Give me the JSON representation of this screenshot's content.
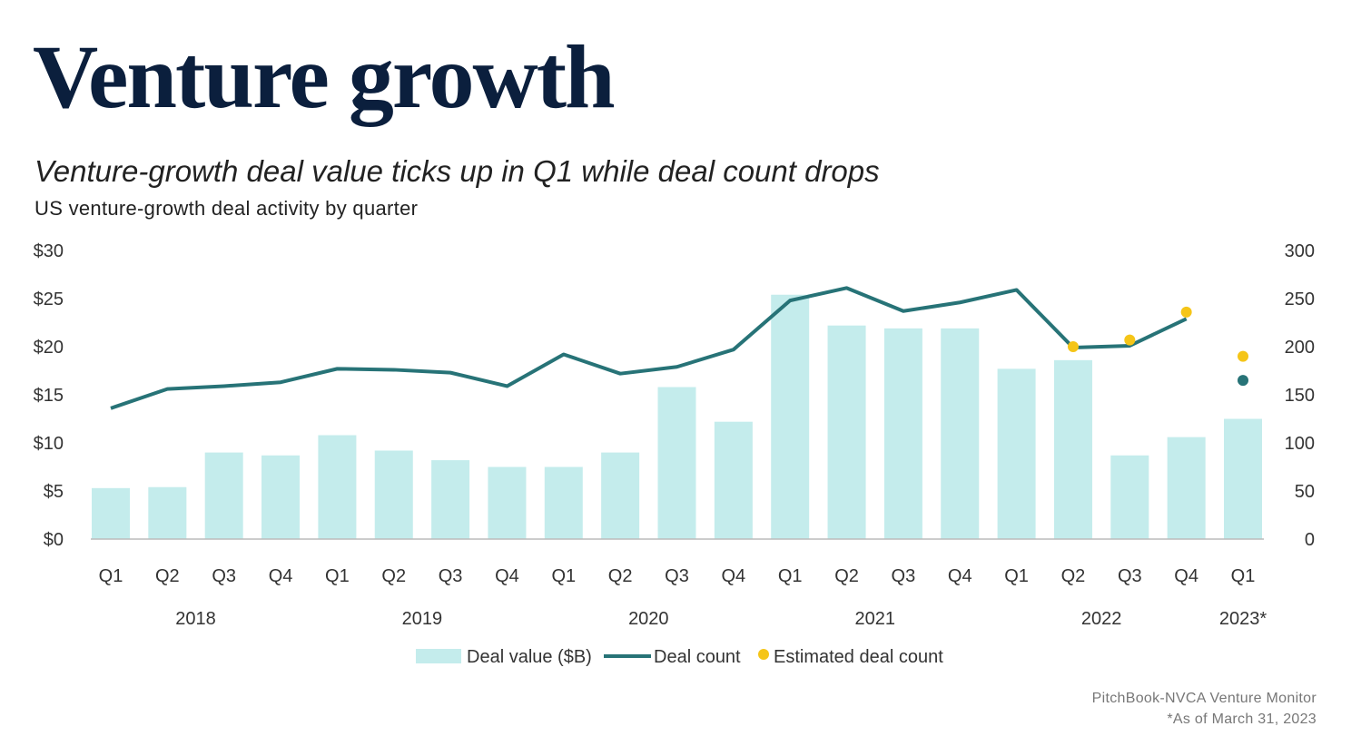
{
  "title": "Venture growth",
  "subtitle": "Venture-growth deal value ticks up in Q1 while deal count drops",
  "caption": "US venture-growth deal activity by quarter",
  "source": "PitchBook-NVCA Venture Monitor",
  "footnote": "*As of March 31, 2023",
  "colors": {
    "bar": "#c4ecec",
    "line": "#277377",
    "estimated": "#f5c518",
    "title": "#0b1f3d"
  },
  "chart_data": {
    "type": "bar+line",
    "categories": [
      "Q1",
      "Q2",
      "Q3",
      "Q4",
      "Q1",
      "Q2",
      "Q3",
      "Q4",
      "Q1",
      "Q2",
      "Q3",
      "Q4",
      "Q1",
      "Q2",
      "Q3",
      "Q4",
      "Q1",
      "Q2",
      "Q3",
      "Q4",
      "Q1"
    ],
    "years": [
      {
        "label": "2018",
        "quarters": [
          0,
          3
        ]
      },
      {
        "label": "2019",
        "quarters": [
          4,
          7
        ]
      },
      {
        "label": "2020",
        "quarters": [
          8,
          11
        ]
      },
      {
        "label": "2021",
        "quarters": [
          12,
          15
        ]
      },
      {
        "label": "2022",
        "quarters": [
          16,
          19
        ]
      },
      {
        "label": "2023*",
        "quarters": [
          20,
          20
        ]
      }
    ],
    "series": [
      {
        "name": "Deal value ($B)",
        "type": "bar",
        "axis": "left",
        "values": [
          5.3,
          5.4,
          9.0,
          8.7,
          10.8,
          9.2,
          8.2,
          7.5,
          7.5,
          9.0,
          15.8,
          12.2,
          25.4,
          22.2,
          21.9,
          21.9,
          17.7,
          18.6,
          8.7,
          10.6,
          12.5
        ]
      },
      {
        "name": "Deal count",
        "type": "line",
        "axis": "right",
        "values": [
          136,
          156,
          159,
          163,
          177,
          176,
          173,
          159,
          192,
          172,
          179,
          197,
          248,
          261,
          237,
          246,
          259,
          199,
          201,
          229,
          165
        ]
      },
      {
        "name": "Estimated deal count",
        "type": "scatter",
        "axis": "right",
        "values": [
          null,
          null,
          null,
          null,
          null,
          null,
          null,
          null,
          null,
          null,
          null,
          null,
          null,
          null,
          null,
          null,
          null,
          200,
          207,
          236,
          190
        ]
      }
    ],
    "left_axis": {
      "ticks": [
        "$0",
        "$5",
        "$10",
        "$15",
        "$20",
        "$25",
        "$30"
      ],
      "ylim": [
        0,
        30
      ]
    },
    "right_axis": {
      "ticks": [
        "0",
        "50",
        "100",
        "150",
        "200",
        "250",
        "300"
      ],
      "ylim": [
        0,
        300
      ]
    },
    "grid": false,
    "legend_position": "bottom"
  }
}
